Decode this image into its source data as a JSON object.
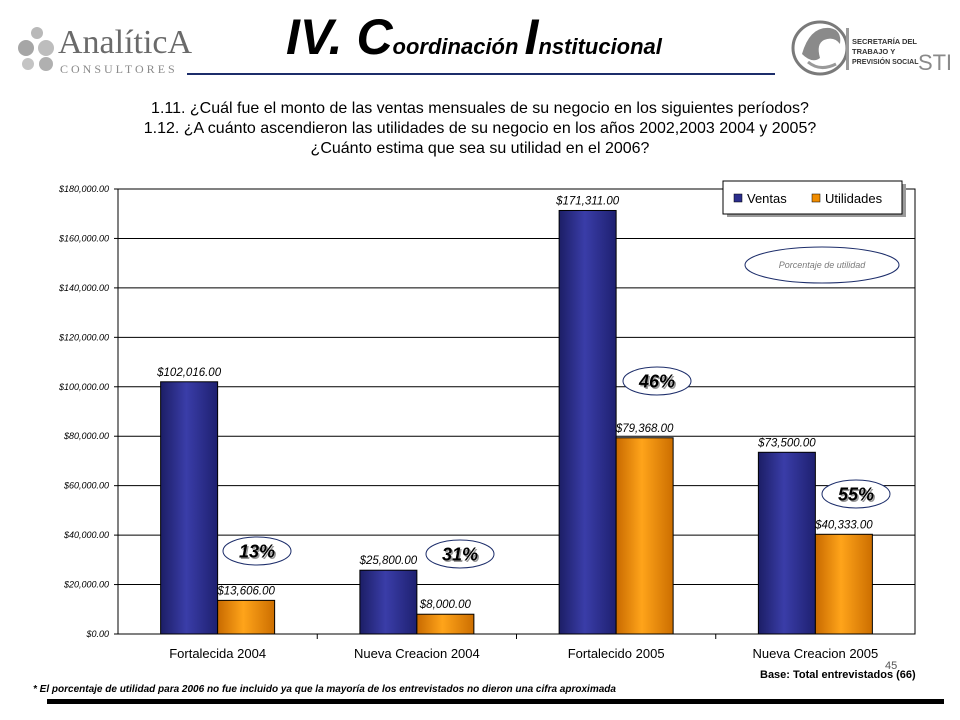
{
  "header": {
    "logo_left": {
      "brand": "AnalíticA",
      "subtitle": "CONSULTORES"
    },
    "title": {
      "roman": "IV. ",
      "c1": "C",
      "w1": "oordinación ",
      "c2": "I",
      "w2": "nstitucional"
    },
    "logo_right": {
      "line1": "SECRETARÍA DEL",
      "line2": "TRABAJO Y",
      "line3": "PREVISIÓN SOCIAL",
      "acronym": "STPS"
    }
  },
  "questions": [
    "1.11. ¿Cuál fue el monto de las ventas mensuales de su negocio en los siguientes períodos?",
    "1.12. ¿A cuánto ascendieron las  utilidades de su negocio en los años 2002,2003 2004 y 2005?",
    "¿Cuánto estima que sea su utilidad en el 2006?"
  ],
  "chart_data": {
    "type": "bar",
    "categories": [
      "Fortalecida 2004",
      "Nueva Creacion 2004",
      "Fortalecido 2005",
      "Nueva Creacion 2005"
    ],
    "series": [
      {
        "name": "Ventas",
        "color": "#2b2d8c",
        "values": [
          102016,
          25800,
          171311,
          73500
        ],
        "labels": [
          "$102,016.00",
          "$25,800.00",
          "$171,311.00",
          "$73,500.00"
        ]
      },
      {
        "name": "Utilidades",
        "color": "#f08c00",
        "values": [
          13606,
          8000,
          79368,
          40333
        ],
        "labels": [
          "$13,606.00",
          "$8,000.00",
          "$79,368.00",
          "$40,333.00"
        ]
      }
    ],
    "ylim": [
      0,
      180000
    ],
    "yticks": [
      0,
      20000,
      40000,
      60000,
      80000,
      100000,
      120000,
      140000,
      160000,
      180000
    ],
    "ytick_labels": [
      "$0.00",
      "$20,000.00",
      "$40,000.00",
      "$60,000.00",
      "$80,000.00",
      "$100,000.00",
      "$120,000.00",
      "$140,000.00",
      "$160,000.00",
      "$180,000.00"
    ],
    "grid": true,
    "legend_position": "top-right",
    "profit_percentages": [
      "13%",
      "31%",
      "46%",
      "55%"
    ],
    "profit_legend_label": "Porcentaje de utilidad"
  },
  "footer": {
    "note": "* El porcentaje de utilidad para 2006 no fue incluido ya que la mayoría de los entrevistados no dieron una cifra aproximada",
    "base": "Base: Total entrevistados  (66)",
    "page_number": "45"
  }
}
